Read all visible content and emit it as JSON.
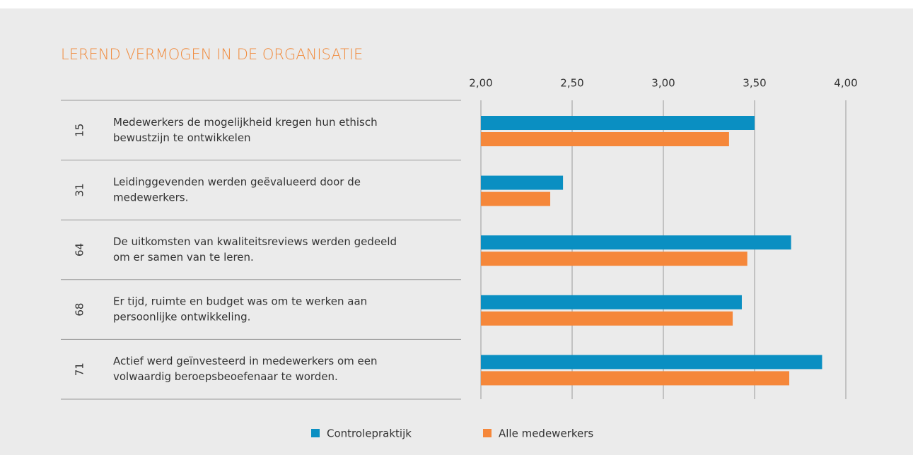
{
  "chart_data": {
    "type": "bar",
    "orientation": "horizontal",
    "title": "LEREND VERMOGEN IN DE ORGANISATIE",
    "row_ids": [
      15,
      31,
      64,
      68,
      71
    ],
    "categories": [
      [
        "Medewerkers de mogelijkheid kregen hun ethisch",
        "bewustzijn te ontwikkelen"
      ],
      [
        "Leidinggevenden werden geëvalueerd door de",
        "medewerkers."
      ],
      [
        "De uitkomsten van kwaliteitsreviews werden gedeeld",
        "om er samen van te leren."
      ],
      [
        "Er tijd, ruimte en budget was om te werken aan",
        "persoonlijke ontwikkeling."
      ],
      [
        "Actief werd geïnvesteerd in medewerkers om een",
        "volwaardig beroepsbeoefenaar te worden."
      ]
    ],
    "series": [
      {
        "name": "Controlepraktijk",
        "color": "#0a8fc2",
        "values": [
          3.5,
          2.45,
          3.7,
          3.43,
          3.87
        ]
      },
      {
        "name": "Alle medewerkers",
        "color": "#f5873a",
        "values": [
          3.36,
          2.38,
          3.46,
          3.38,
          3.69
        ]
      }
    ],
    "xlim": [
      2,
      4
    ],
    "xticks": [
      {
        "value": 2,
        "label": "2,00"
      },
      {
        "value": 2.5,
        "label": "2,50"
      },
      {
        "value": 3,
        "label": "3,00"
      },
      {
        "value": 3.5,
        "label": "3,50"
      },
      {
        "value": 4,
        "label": "4,00"
      }
    ],
    "grid": true,
    "legend": "bottom"
  }
}
